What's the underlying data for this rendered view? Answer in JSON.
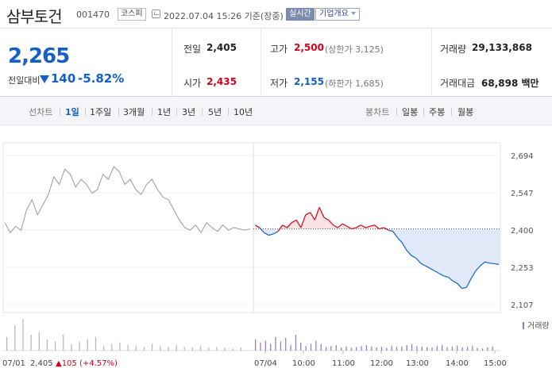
{
  "header": {
    "stock_name": "삼부토건",
    "stock_code": "001470",
    "market": "코스피",
    "datetime": "2022.07.04 15:26 기준(장중)",
    "realtime": "실시간",
    "company_info": "기업개요"
  },
  "price": {
    "current": "2,265",
    "change_label": "전일대비",
    "change_amount": "140",
    "change_pct": "-5.82%"
  },
  "stats": {
    "prev_label": "전일",
    "prev_val": "2,405",
    "high_label": "고가",
    "high_val": "2,500",
    "high_sub": "(상한가 3,125)",
    "volume_label": "거래량",
    "volume_val": "29,133,868",
    "open_label": "시가",
    "open_val": "2,435",
    "low_label": "저가",
    "low_val": "2,155",
    "low_sub": "(하한가 1,685)",
    "amount_label": "거래대금",
    "amount_val": "68,898 백만"
  },
  "tabs": {
    "line_label": "선차트",
    "line_items": [
      "1일",
      "1주일",
      "3개월",
      "1년",
      "3년",
      "5년",
      "10년"
    ],
    "candle_label": "봉차트",
    "candle_items": [
      "일봉",
      "주봉",
      "월봉"
    ]
  },
  "colors": {
    "up": "#d0021b",
    "down": "#1560c4",
    "fill_below": "#dfe9f7",
    "fill_above": "#fbe3e3",
    "prev_line": "#9a9a9a",
    "volume_bar": "#8e76c4"
  },
  "chart_data": {
    "type": "line",
    "ylim": [
      2107,
      2694
    ],
    "y_ticks": [
      "2,694",
      "2,547",
      "2,400",
      "2,253",
      "2,107"
    ],
    "baseline": 2405,
    "x_ticks": [
      "07/01",
      "07/04",
      "10:00",
      "11:00",
      "12:00",
      "13:00",
      "14:00",
      "15:00"
    ],
    "volume_legend": "거래량",
    "prev_day_label": "07/01",
    "prev_day_price": "2,405",
    "prev_day_change": "▲105 (+4.57%)",
    "prev_day_series": {
      "name": "07/01",
      "values": [
        2430,
        2390,
        2415,
        2400,
        2480,
        2520,
        2460,
        2500,
        2540,
        2610,
        2580,
        2640,
        2620,
        2570,
        2600,
        2580,
        2545,
        2560,
        2620,
        2600,
        2650,
        2630,
        2580,
        2600,
        2560,
        2540,
        2580,
        2600,
        2560,
        2530,
        2520,
        2480,
        2440,
        2410,
        2400,
        2420,
        2390,
        2430,
        2410,
        2395,
        2420,
        2400,
        2410,
        2405,
        2400,
        2405
      ]
    },
    "today_series": {
      "name": "07/04",
      "values": [
        2420,
        2410,
        2390,
        2380,
        2385,
        2395,
        2420,
        2410,
        2430,
        2440,
        2410,
        2460,
        2470,
        2440,
        2490,
        2450,
        2440,
        2420,
        2410,
        2425,
        2415,
        2405,
        2410,
        2420,
        2410,
        2415,
        2420,
        2405,
        2410,
        2400,
        2395,
        2370,
        2350,
        2320,
        2300,
        2290,
        2270,
        2260,
        2250,
        2240,
        2230,
        2220,
        2215,
        2200,
        2190,
        2170,
        2175,
        2210,
        2240,
        2260,
        2275,
        2270,
        2268,
        2265
      ]
    },
    "prev_day_volume": [
      30,
      55,
      70,
      35,
      40,
      25,
      20,
      35,
      15,
      20,
      25,
      30,
      10,
      15,
      18,
      12,
      10,
      8,
      15,
      10,
      9,
      12,
      8,
      7,
      10,
      6,
      8,
      6,
      5,
      7
    ],
    "today_volume": [
      25,
      18,
      22,
      15,
      30,
      20,
      28,
      12,
      35,
      18,
      10,
      15,
      22,
      14,
      8,
      10,
      12,
      7,
      9,
      6,
      8,
      10,
      12,
      9,
      7,
      8,
      6,
      10,
      8,
      9,
      12,
      14,
      10,
      9,
      8,
      7,
      10,
      12,
      8,
      9,
      11,
      7,
      8,
      10,
      6,
      5,
      7,
      9
    ]
  }
}
